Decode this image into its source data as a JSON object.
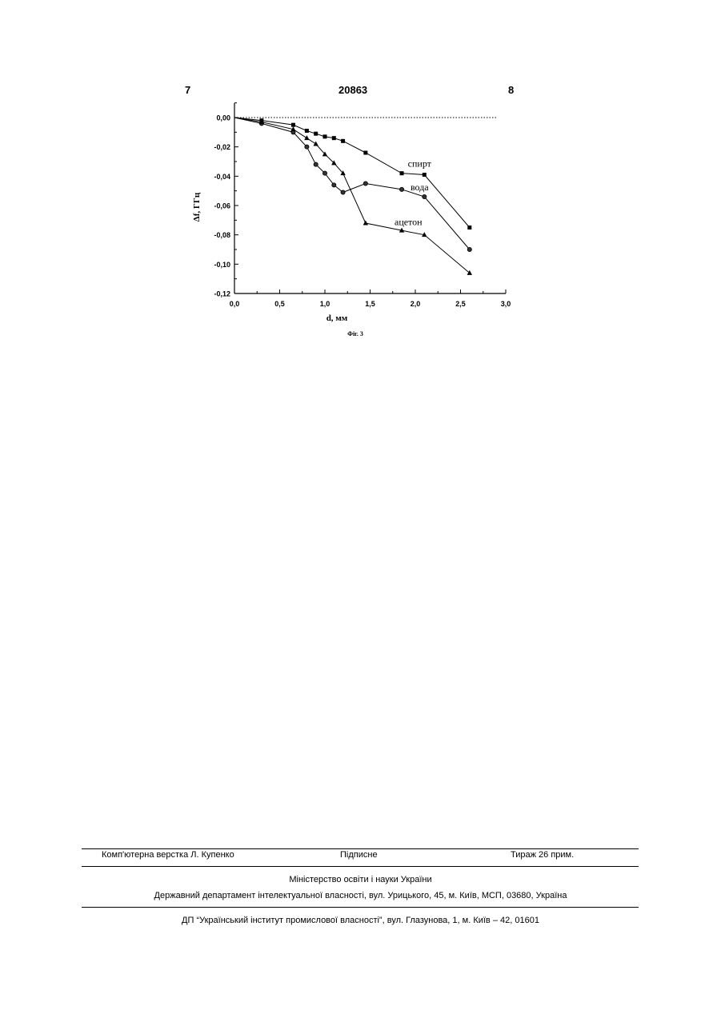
{
  "header": {
    "page_left": "7",
    "patent_number": "20863",
    "page_right": "8"
  },
  "chart_data": {
    "type": "line",
    "xlabel": "d, мм",
    "ylabel": "Δf, ГГц",
    "caption": "Фіг. 3",
    "xlim": [
      0,
      3.0
    ],
    "ylim": [
      -0.12,
      0.0
    ],
    "xticks": [
      "0,0",
      "0,5",
      "1,0",
      "1,5",
      "2,0",
      "2,5",
      "3,0"
    ],
    "yticks": [
      "0,00",
      "-0,02",
      "-0,04",
      "-0,06",
      "-0,08",
      "-0,10",
      "-0,12"
    ],
    "grid": false,
    "reference_line": {
      "y": 0.0,
      "style": "dotted"
    },
    "series": [
      {
        "name": "спирт",
        "marker": "square",
        "x": [
          0,
          0.3,
          0.65,
          0.8,
          0.9,
          1.0,
          1.1,
          1.2,
          1.45,
          1.85,
          2.1,
          2.6
        ],
        "y": [
          0,
          -0.002,
          -0.005,
          -0.009,
          -0.011,
          -0.013,
          -0.014,
          -0.016,
          -0.024,
          -0.038,
          -0.039,
          -0.075
        ]
      },
      {
        "name": "вода",
        "marker": "circle",
        "x": [
          0,
          0.3,
          0.65,
          0.8,
          0.9,
          1.0,
          1.1,
          1.2,
          1.45,
          1.85,
          2.1,
          2.6
        ],
        "y": [
          0,
          -0.004,
          -0.01,
          -0.02,
          -0.032,
          -0.038,
          -0.046,
          -0.051,
          -0.045,
          -0.049,
          -0.054,
          -0.09
        ]
      },
      {
        "name": "ацетон",
        "marker": "triangle",
        "x": [
          0,
          0.3,
          0.65,
          0.8,
          0.9,
          1.0,
          1.1,
          1.2,
          1.45,
          1.85,
          2.1,
          2.6
        ],
        "y": [
          0,
          -0.003,
          -0.008,
          -0.014,
          -0.018,
          -0.025,
          -0.031,
          -0.038,
          -0.072,
          -0.077,
          -0.08,
          -0.106
        ]
      }
    ]
  },
  "footer": {
    "layout": "Комп'ютерна верстка Л. Купенко",
    "subscription": "Підписне",
    "circulation": "Тираж 26 прим.",
    "ministry": "Міністерство освіти і науки України",
    "department": "Державний департамент інтелектуальної власності, вул. Урицького, 45, м. Київ, МСП, 03680, Україна",
    "institute": "ДП “Український інститут промислової власності”, вул. Глазунова, 1, м. Київ – 42, 01601"
  }
}
